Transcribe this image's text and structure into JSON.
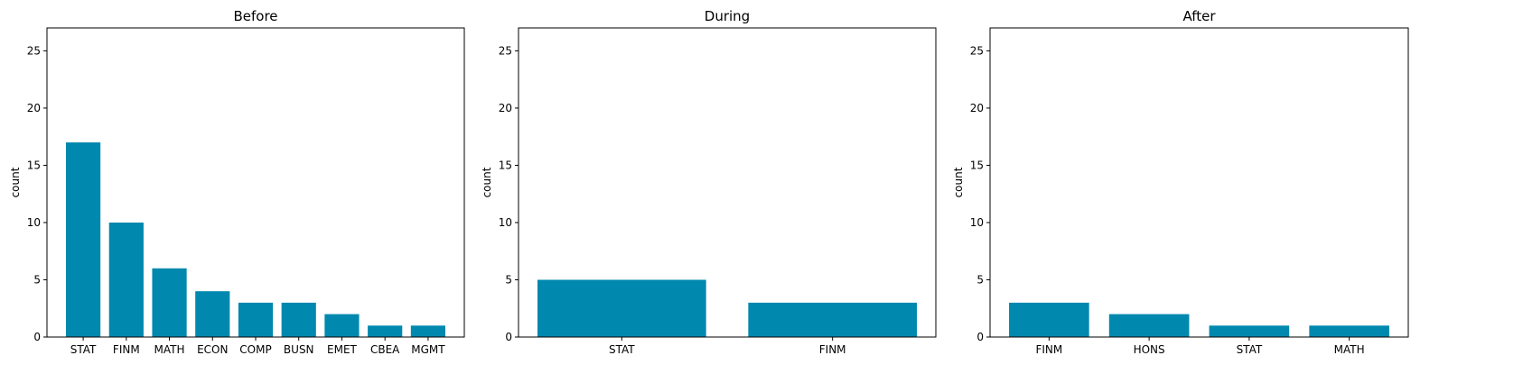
{
  "chart_data": [
    {
      "type": "bar",
      "title": "Before",
      "xlabel": "",
      "ylabel": "count",
      "categories": [
        "STAT",
        "FINM",
        "MATH",
        "ECON",
        "COMP",
        "BUSN",
        "EMET",
        "CBEA",
        "MGMT"
      ],
      "values": [
        17,
        10,
        6,
        4,
        3,
        3,
        2,
        1,
        1
      ],
      "ylim": [
        0,
        27
      ],
      "yticks": [
        0,
        5,
        10,
        15,
        20,
        25
      ],
      "bar_color": "#0088ae",
      "grid": false
    },
    {
      "type": "bar",
      "title": "During",
      "xlabel": "",
      "ylabel": "count",
      "categories": [
        "STAT",
        "FINM"
      ],
      "values": [
        5,
        3
      ],
      "ylim": [
        0,
        27
      ],
      "yticks": [
        0,
        5,
        10,
        15,
        20,
        25
      ],
      "bar_color": "#0088ae",
      "grid": false
    },
    {
      "type": "bar",
      "title": "After",
      "xlabel": "",
      "ylabel": "count",
      "categories": [
        "FINM",
        "HONS",
        "STAT",
        "MATH"
      ],
      "values": [
        3,
        2,
        1,
        1
      ],
      "ylim": [
        0,
        27
      ],
      "yticks": [
        0,
        5,
        10,
        15,
        20,
        25
      ],
      "bar_color": "#0088ae",
      "grid": false
    }
  ]
}
